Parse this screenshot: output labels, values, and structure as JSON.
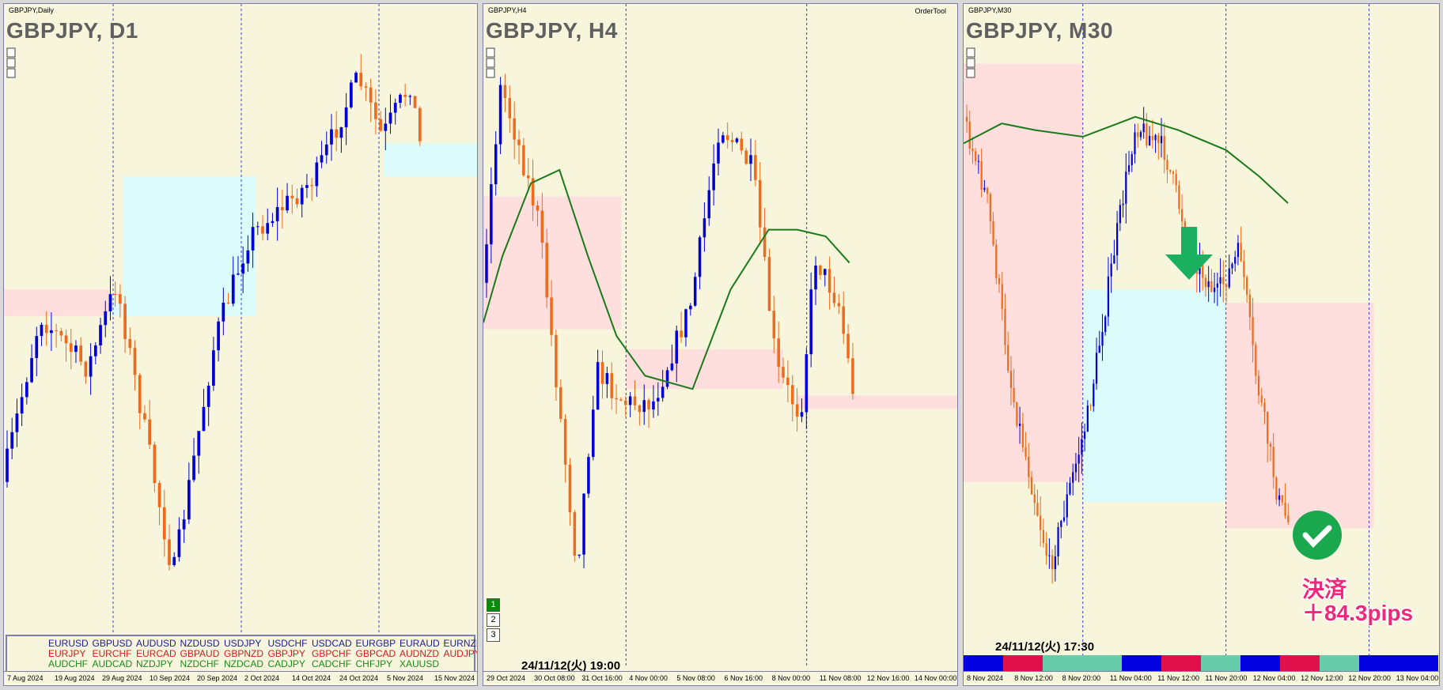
{
  "panels": [
    {
      "symbol_label": "GBPJPY,Daily",
      "title": "GBPJPY, D1",
      "x_labels": [
        "7 Aug 2024",
        "19 Aug 2024",
        "29 Aug 2024",
        "10 Sep 2024",
        "20 Sep 2024",
        "2 Oct 2024",
        "14 Oct 2024",
        "24 Oct 2024",
        "5 Nov 2024",
        "15 Nov 2024"
      ]
    },
    {
      "symbol_label": "GBPJPY,H4",
      "title": "GBPJPY, H4",
      "tool": "OrderTool",
      "timestamp": "24/11/12(火) 19:00",
      "buttons": [
        "1",
        "2",
        "3"
      ],
      "x_labels": [
        "29 Oct 2024",
        "30 Oct 08:00",
        "31 Oct 16:00",
        "4 Nov 00:00",
        "5 Nov 08:00",
        "6 Nov 16:00",
        "8 Nov 00:00",
        "11 Nov 08:00",
        "12 Nov 16:00",
        "14 Nov 00:00"
      ]
    },
    {
      "symbol_label": "GBPJPY,M30",
      "title": "GBPJPY, M30",
      "timestamp": "24/11/12(火) 17:30",
      "result_label": "決済",
      "result_pips": "＋84.3pips",
      "x_labels": [
        "8 Nov 2024",
        "8 Nov 12:00",
        "8 Nov 20:00",
        "11 Nov 04:00",
        "11 Nov 12:00",
        "11 Nov 20:00",
        "12 Nov 04:00",
        "12 Nov 12:00",
        "12 Nov 20:00",
        "13 Nov 04:00"
      ]
    }
  ],
  "symbols": [
    [
      "EURUSD",
      "GBPUSD",
      "AUDUSD",
      "NZDUSD",
      "USDJPY",
      "USDCHF",
      "USDCAD",
      "EURGBP",
      "EURAUD",
      "EURNZD"
    ],
    [
      "EURJPY",
      "EURCHF",
      "EURCAD",
      "GBPAUD",
      "GBPNZD",
      "GBPJPY",
      "GBPCHF",
      "GBPCAD",
      "AUDNZD",
      "AUDJPY"
    ],
    [
      "AUDCHF",
      "AUDCAD",
      "NZDJPY",
      "NZDCHF",
      "NZDCAD",
      "CADJPY",
      "CADCHF",
      "CHFJPY",
      "XAUUSD"
    ]
  ]
}
